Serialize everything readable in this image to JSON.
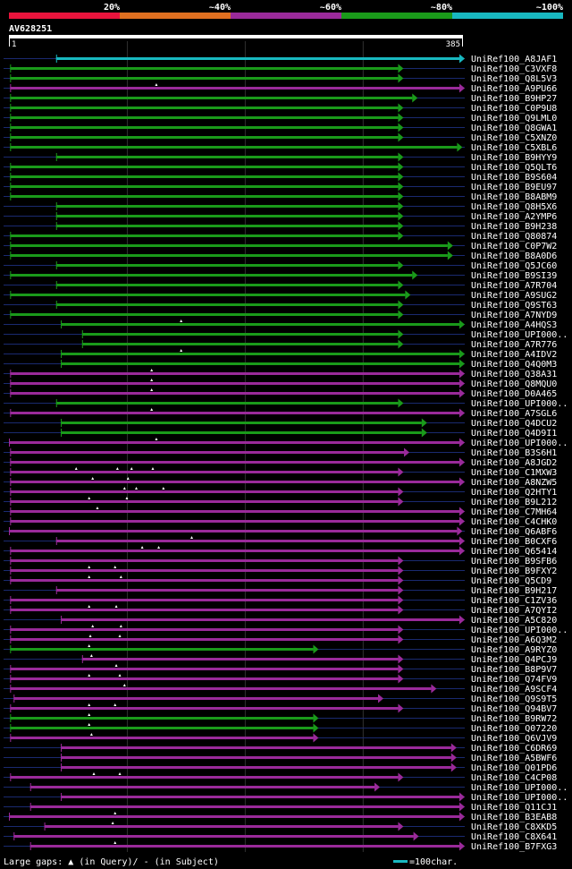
{
  "legend_top": {
    "labels": [
      "20%",
      "~40%",
      "~60%",
      "~80%",
      "~100%"
    ],
    "colors": [
      "#e8143c",
      "#e07020",
      "#9a2a9a",
      "#1a9a1a",
      "#18b8c0"
    ]
  },
  "query": {
    "name": "AV628251",
    "start_label": "1",
    "end_label": "385",
    "length": 385
  },
  "footer": {
    "gaps_prefix": "Large gaps: ",
    "gaps_query": "(in Query)/",
    "gaps_subject": "- (in Subject)",
    "scale_label": "=100char."
  },
  "colors": {
    "background": "#000000",
    "grid": "#303030",
    "track": "#1a2a70",
    "query_bar": "#ffffff",
    "gap_marker": "#ffffff",
    "cyan": "#18b8c0",
    "green": "#1a9a1a",
    "purple": "#9a2a9a"
  },
  "hits": [
    {
      "name": "UniRef100_A8JAF1",
      "s": 40,
      "e": 385,
      "c": "cyan",
      "m": []
    },
    {
      "name": "UniRef100_C3VXF8",
      "s": 1,
      "e": 330,
      "c": "green",
      "m": []
    },
    {
      "name": "UniRef100_Q8L5V3",
      "s": 1,
      "e": 330,
      "c": "green",
      "m": []
    },
    {
      "name": "UniRef100_A9PU66",
      "s": 1,
      "e": 400,
      "c": "purple",
      "m": [
        125
      ]
    },
    {
      "name": "UniRef100_B9HP27",
      "s": 1,
      "e": 342,
      "c": "green",
      "m": []
    },
    {
      "name": "UniRef100_C0P9U8",
      "s": 1,
      "e": 330,
      "c": "green",
      "m": []
    },
    {
      "name": "UniRef100_Q9LML0",
      "s": 1,
      "e": 330,
      "c": "green",
      "m": []
    },
    {
      "name": "UniRef100_Q8GWA1",
      "s": 1,
      "e": 330,
      "c": "green",
      "m": []
    },
    {
      "name": "UniRef100_C5XNZ0",
      "s": 1,
      "e": 330,
      "c": "green",
      "m": []
    },
    {
      "name": "UniRef100_C5XBL6",
      "s": 1,
      "e": 380,
      "c": "green",
      "m": []
    },
    {
      "name": "UniRef100_B9HYY9",
      "s": 40,
      "e": 330,
      "c": "green",
      "m": []
    },
    {
      "name": "UniRef100_Q5QLT6",
      "s": 1,
      "e": 330,
      "c": "green",
      "m": []
    },
    {
      "name": "UniRef100_B9S604",
      "s": 1,
      "e": 330,
      "c": "green",
      "m": []
    },
    {
      "name": "UniRef100_B9EU97",
      "s": 1,
      "e": 330,
      "c": "green",
      "m": []
    },
    {
      "name": "UniRef100_B8ABM9",
      "s": 1,
      "e": 330,
      "c": "green",
      "m": []
    },
    {
      "name": "UniRef100_Q8H5X6",
      "s": 40,
      "e": 330,
      "c": "green",
      "m": []
    },
    {
      "name": "UniRef100_A2YMP6",
      "s": 40,
      "e": 330,
      "c": "green",
      "m": []
    },
    {
      "name": "UniRef100_B9H238",
      "s": 40,
      "e": 330,
      "c": "green",
      "m": []
    },
    {
      "name": "UniRef100_Q80874",
      "s": 1,
      "e": 330,
      "c": "green",
      "m": []
    },
    {
      "name": "UniRef100_C0P7W2",
      "s": 1,
      "e": 372,
      "c": "green",
      "m": []
    },
    {
      "name": "UniRef100_B8A0D6",
      "s": 1,
      "e": 372,
      "c": "green",
      "m": []
    },
    {
      "name": "UniRef100_Q5JC60",
      "s": 40,
      "e": 330,
      "c": "green",
      "m": []
    },
    {
      "name": "UniRef100_B9SI39",
      "s": 1,
      "e": 342,
      "c": "green",
      "m": []
    },
    {
      "name": "UniRef100_A7R704",
      "s": 40,
      "e": 330,
      "c": "green",
      "m": []
    },
    {
      "name": "UniRef100_A9SUG2",
      "s": 1,
      "e": 336,
      "c": "green",
      "m": []
    },
    {
      "name": "UniRef100_Q9ST63",
      "s": 40,
      "e": 330,
      "c": "green",
      "m": []
    },
    {
      "name": "UniRef100_A7NYD9",
      "s": 1,
      "e": 330,
      "c": "green",
      "m": []
    },
    {
      "name": "UniRef100_A4HQS3",
      "s": 44,
      "e": 385,
      "c": "green",
      "m": [
        146
      ]
    },
    {
      "name": "UniRef100_UPI000..",
      "s": 62,
      "e": 330,
      "c": "green",
      "m": []
    },
    {
      "name": "UniRef100_A7R776",
      "s": 62,
      "e": 330,
      "c": "green",
      "m": []
    },
    {
      "name": "UniRef100_A4IDV2",
      "s": 44,
      "e": 385,
      "c": "green",
      "m": [
        146
      ]
    },
    {
      "name": "UniRef100_Q4Q0M3",
      "s": 44,
      "e": 382,
      "c": "green",
      "m": []
    },
    {
      "name": "UniRef100_Q38A31",
      "s": 1,
      "e": 385,
      "c": "purple",
      "m": [
        121
      ]
    },
    {
      "name": "UniRef100_Q8MQU0",
      "s": 1,
      "e": 385,
      "c": "purple",
      "m": [
        121
      ]
    },
    {
      "name": "UniRef100_D0A465",
      "s": 1,
      "e": 385,
      "c": "purple",
      "m": [
        121
      ]
    },
    {
      "name": "UniRef100_UPI000..",
      "s": 40,
      "e": 330,
      "c": "green",
      "m": []
    },
    {
      "name": "UniRef100_A7SGL6",
      "s": 1,
      "e": 400,
      "c": "purple",
      "m": [
        121
      ]
    },
    {
      "name": "UniRef100_Q4DCU2",
      "s": 44,
      "e": 350,
      "c": "green",
      "m": []
    },
    {
      "name": "UniRef100_Q4D9I1",
      "s": 44,
      "e": 350,
      "c": "green",
      "m": []
    },
    {
      "name": "UniRef100_UPI000..",
      "s": -2,
      "e": 400,
      "c": "purple",
      "m": [
        125
      ]
    },
    {
      "name": "UniRef100_B3S6H1",
      "s": 1,
      "e": 335,
      "c": "purple",
      "m": []
    },
    {
      "name": "UniRef100_A8JGD2",
      "s": 1,
      "e": 400,
      "c": "purple",
      "m": []
    },
    {
      "name": "UniRef100_C1MXW3",
      "s": 1,
      "e": 330,
      "c": "purple",
      "m": [
        57,
        92,
        104,
        122
      ]
    },
    {
      "name": "UniRef100_A8NZW5",
      "s": 1,
      "e": 400,
      "c": "purple",
      "m": [
        71,
        101
      ]
    },
    {
      "name": "UniRef100_Q2HTY1",
      "s": 1,
      "e": 330,
      "c": "purple",
      "m": [
        98,
        108,
        131
      ]
    },
    {
      "name": "UniRef100_B9L212",
      "s": 1,
      "e": 330,
      "c": "purple",
      "m": [
        68,
        100
      ]
    },
    {
      "name": "UniRef100_C7MH64",
      "s": 1,
      "e": 400,
      "c": "purple",
      "m": [
        75
      ]
    },
    {
      "name": "UniRef100_C4CHK0",
      "s": 1,
      "e": 391,
      "c": "purple",
      "m": []
    },
    {
      "name": "UniRef100_Q6ABF6",
      "s": -2,
      "e": 380,
      "c": "purple",
      "m": []
    },
    {
      "name": "UniRef100_B0CXF6",
      "s": 40,
      "e": 400,
      "c": "purple",
      "m": [
        155
      ]
    },
    {
      "name": "UniRef100_Q65414",
      "s": 1,
      "e": 400,
      "c": "purple",
      "m": [
        113,
        127
      ]
    },
    {
      "name": "UniRef100_B9SFB6",
      "s": 1,
      "e": 330,
      "c": "purple",
      "m": []
    },
    {
      "name": "UniRef100_B9FXY2",
      "s": 1,
      "e": 330,
      "c": "purple",
      "m": [
        68,
        90
      ]
    },
    {
      "name": "UniRef100_Q5CD9",
      "s": 1,
      "e": 330,
      "c": "purple",
      "m": [
        68,
        95
      ]
    },
    {
      "name": "UniRef100_B9H217",
      "s": 40,
      "e": 330,
      "c": "purple",
      "m": []
    },
    {
      "name": "UniRef100_C1ZV36",
      "s": 1,
      "e": 330,
      "c": "purple",
      "m": []
    },
    {
      "name": "UniRef100_A7QYI2",
      "s": 1,
      "e": 330,
      "c": "purple",
      "m": [
        68,
        91
      ]
    },
    {
      "name": "UniRef100_A5C820",
      "s": 44,
      "e": 385,
      "c": "purple",
      "m": []
    },
    {
      "name": "UniRef100_UPI000..",
      "s": 1,
      "e": 330,
      "c": "purple",
      "m": [
        71,
        95
      ]
    },
    {
      "name": "UniRef100_A6Q3M2",
      "s": 1,
      "e": 330,
      "c": "purple",
      "m": [
        69,
        94
      ]
    },
    {
      "name": "UniRef100_A9RYZ0",
      "s": 1,
      "e": 258,
      "c": "green",
      "m": [
        68
      ]
    },
    {
      "name": "UniRef100_Q4PCJ9",
      "s": 62,
      "e": 330,
      "c": "purple",
      "m": [
        70
      ]
    },
    {
      "name": "UniRef100_B8P9V7",
      "s": 1,
      "e": 330,
      "c": "purple",
      "m": [
        91
      ]
    },
    {
      "name": "UniRef100_Q74FV9",
      "s": 1,
      "e": 330,
      "c": "purple",
      "m": [
        68,
        94
      ]
    },
    {
      "name": "UniRef100_A9SCF4",
      "s": 1,
      "e": 358,
      "c": "purple",
      "m": [
        98
      ]
    },
    {
      "name": "UniRef100_Q9S9T5",
      "s": 4,
      "e": 313,
      "c": "purple",
      "m": []
    },
    {
      "name": "UniRef100_Q94BV7",
      "s": 1,
      "e": 330,
      "c": "purple",
      "m": [
        68,
        90
      ]
    },
    {
      "name": "UniRef100_B9RW72",
      "s": 1,
      "e": 258,
      "c": "green",
      "m": [
        68
      ]
    },
    {
      "name": "UniRef100_Q07220",
      "s": 1,
      "e": 258,
      "c": "green",
      "m": [
        68
      ]
    },
    {
      "name": "UniRef100_Q6VJV9",
      "s": 1,
      "e": 258,
      "c": "purple",
      "m": [
        70
      ]
    },
    {
      "name": "UniRef100_C6DR69",
      "s": 44,
      "e": 375,
      "c": "purple",
      "m": []
    },
    {
      "name": "UniRef100_A5BWF6",
      "s": 44,
      "e": 375,
      "c": "purple",
      "m": []
    },
    {
      "name": "UniRef100_Q01PD6",
      "s": 44,
      "e": 375,
      "c": "purple",
      "m": []
    },
    {
      "name": "UniRef100_C4CP08",
      "s": 1,
      "e": 330,
      "c": "purple",
      "m": [
        72,
        94
      ]
    },
    {
      "name": "UniRef100_UPI000..",
      "s": 18,
      "e": 310,
      "c": "purple",
      "m": []
    },
    {
      "name": "UniRef100_UPI000..",
      "s": 44,
      "e": 400,
      "c": "purple",
      "m": []
    },
    {
      "name": "UniRef100_Q11CJ1",
      "s": 18,
      "e": 400,
      "c": "purple",
      "m": []
    },
    {
      "name": "UniRef100_B3EAB8",
      "s": -2,
      "e": 390,
      "c": "purple",
      "m": [
        90
      ]
    },
    {
      "name": "UniRef100_C8XKD5",
      "s": 30,
      "e": 330,
      "c": "purple",
      "m": [
        88
      ]
    },
    {
      "name": "UniRef100_C8X641",
      "s": 4,
      "e": 343,
      "c": "purple",
      "m": []
    },
    {
      "name": "UniRef100_B7FXG3",
      "s": 18,
      "e": 385,
      "c": "purple",
      "m": [
        90
      ]
    }
  ]
}
